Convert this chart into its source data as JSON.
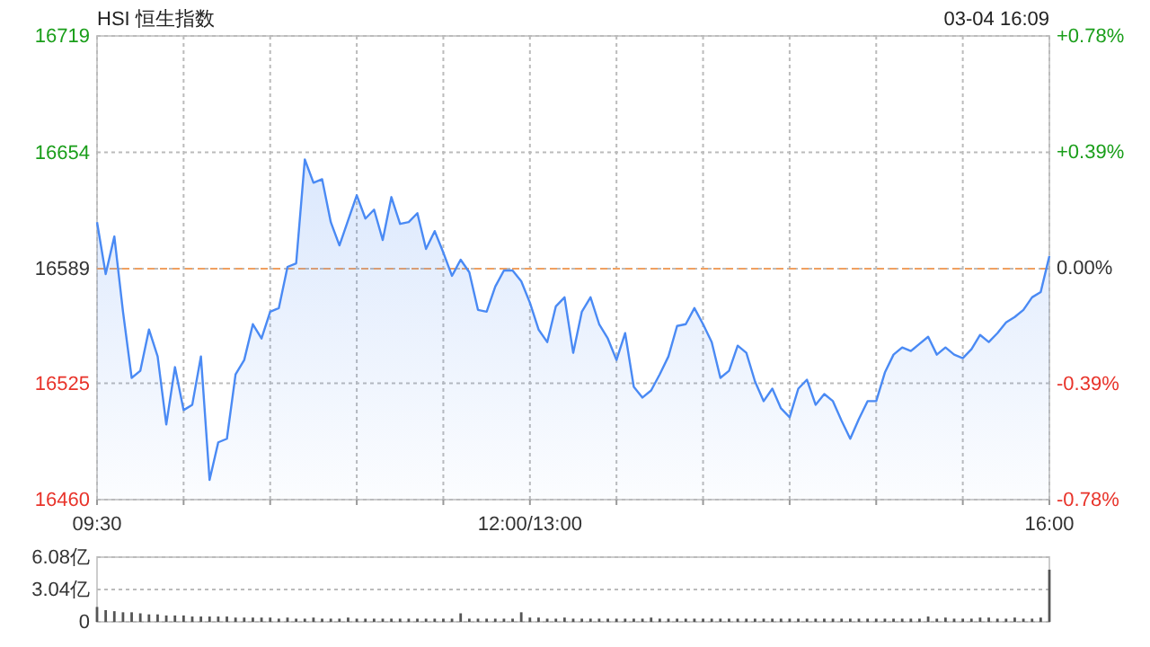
{
  "chart_data": [
    {
      "type": "area",
      "title": "HSI 恒生指数",
      "annotations": [
        "03-04 16:09"
      ],
      "categories": [
        "09:30",
        null,
        null,
        null,
        null,
        null,
        null,
        null,
        null,
        null,
        null,
        null,
        null,
        null,
        null,
        null,
        null,
        null,
        null,
        null,
        null,
        null,
        null,
        null,
        null,
        null,
        null,
        null,
        null,
        null,
        null,
        null,
        null,
        null,
        null,
        null,
        null,
        null,
        null,
        null,
        null,
        null,
        null,
        null,
        null,
        null,
        null,
        null,
        null,
        null,
        "12:00/13:00",
        null,
        null,
        null,
        null,
        null,
        null,
        null,
        null,
        null,
        null,
        null,
        null,
        null,
        null,
        null,
        null,
        null,
        null,
        null,
        null,
        null,
        null,
        null,
        null,
        null,
        null,
        null,
        null,
        null,
        null,
        null,
        null,
        null,
        null,
        null,
        null,
        null,
        null,
        null,
        null,
        null,
        null,
        null,
        null,
        null,
        null,
        null,
        null,
        null,
        null,
        null,
        null,
        null,
        null,
        null,
        null,
        null,
        null,
        null,
        "16:00"
      ],
      "series": [
        {
          "color": "#4a8af4",
          "values": [
            16615,
            16586,
            16607,
            16565,
            16528,
            16532,
            16555,
            16540,
            16502,
            16534,
            16510,
            16513,
            16540,
            16471,
            16492,
            16494,
            16530,
            16538,
            16558,
            16550,
            16565,
            16567,
            16590,
            16592,
            16650,
            16637,
            16639,
            16615,
            16602,
            16616,
            16630,
            16617,
            16622,
            16605,
            16629,
            16614,
            16615,
            16620,
            16600,
            16610,
            16598,
            16585,
            16594,
            16587,
            16566,
            16565,
            16579,
            16588,
            16588,
            16582,
            16570,
            16555,
            16548,
            16568,
            16573,
            16542,
            16565,
            16573,
            16558,
            16550,
            16538,
            16553,
            16523,
            16517,
            16521,
            16530,
            16540,
            16557,
            16558,
            16567,
            16558,
            16548,
            16528,
            16532,
            16546,
            16542,
            16526,
            16515,
            16522,
            16511,
            16506,
            16522,
            16527,
            16513,
            16519,
            16515,
            16504,
            16494,
            16505,
            16515,
            16515,
            16531,
            16541,
            16545,
            16543,
            16547,
            16551,
            16541,
            16545,
            16541,
            16539,
            16544,
            16552,
            16548,
            16553,
            16559,
            16562,
            16566,
            16573,
            16576,
            16596
          ]
        }
      ],
      "ylim": [
        16460,
        16719
      ],
      "yticks": [
        16460,
        16525,
        16589,
        16654,
        16719
      ],
      "y2lim": [
        -0.78,
        0.78
      ],
      "y2ticks": [
        {
          "value": -0.78,
          "label": "-0.78%"
        },
        {
          "value": -0.39,
          "label": "-0.39%"
        },
        {
          "value": 0,
          "label": "0.00%"
        },
        {
          "value": 0.39,
          "label": "+0.39%"
        },
        {
          "value": 0.78,
          "label": "+0.78%"
        }
      ],
      "ref_lines": [
        {
          "axis": "y",
          "value": 16589,
          "color": "#f0a060",
          "line_style": "dashed"
        }
      ],
      "grid": true
    },
    {
      "type": "bar",
      "categories": [
        null,
        null,
        null,
        null,
        null,
        null,
        null,
        null,
        null,
        null,
        null,
        null,
        null,
        null,
        null,
        null,
        null,
        null,
        null,
        null,
        null,
        null,
        null,
        null,
        null,
        null,
        null,
        null,
        null,
        null,
        null,
        null,
        null,
        null,
        null,
        null,
        null,
        null,
        null,
        null,
        null,
        null,
        null,
        null,
        null,
        null,
        null,
        null,
        null,
        null,
        null,
        null,
        null,
        null,
        null,
        null,
        null,
        null,
        null,
        null,
        null,
        null,
        null,
        null,
        null,
        null,
        null,
        null,
        null,
        null,
        null,
        null,
        null,
        null,
        null,
        null,
        null,
        null,
        null,
        null,
        null,
        null,
        null,
        null,
        null,
        null,
        null,
        null,
        null,
        null,
        null,
        null,
        null,
        null,
        null,
        null,
        null,
        null,
        null,
        null,
        null,
        null,
        null,
        null,
        null,
        null,
        null,
        null,
        null,
        null,
        null
      ],
      "series": [
        {
          "color": "#555555",
          "values": [
            1.4,
            1.1,
            1.0,
            0.9,
            0.9,
            0.8,
            0.7,
            0.7,
            0.6,
            0.6,
            0.6,
            0.5,
            0.5,
            0.5,
            0.5,
            0.5,
            0.4,
            0.4,
            0.4,
            0.4,
            0.4,
            0.3,
            0.4,
            0.3,
            0.3,
            0.4,
            0.3,
            0.3,
            0.3,
            0.4,
            0.3,
            0.3,
            0.3,
            0.3,
            0.3,
            0.3,
            0.3,
            0.3,
            0.3,
            0.3,
            0.3,
            0.3,
            0.8,
            0.3,
            0.3,
            0.3,
            0.3,
            0.3,
            0.3,
            0.9,
            0.4,
            0.4,
            0.3,
            0.3,
            0.4,
            0.3,
            0.3,
            0.3,
            0.3,
            0.3,
            0.3,
            0.3,
            0.3,
            0.3,
            0.4,
            0.3,
            0.3,
            0.3,
            0.3,
            0.3,
            0.3,
            0.3,
            0.3,
            0.3,
            0.3,
            0.3,
            0.3,
            0.3,
            0.3,
            0.3,
            0.3,
            0.3,
            0.3,
            0.3,
            0.3,
            0.3,
            0.3,
            0.3,
            0.3,
            0.3,
            0.3,
            0.3,
            0.3,
            0.3,
            0.3,
            0.3,
            0.5,
            0.3,
            0.4,
            0.3,
            0.3,
            0.3,
            0.4,
            0.4,
            0.3,
            0.3,
            0.4,
            0.3,
            0.3,
            0.4,
            4.9
          ]
        }
      ],
      "ylim": [
        0,
        6.08
      ],
      "yticks": [
        0,
        {
          "value": 3.04,
          "label": "3.04亿"
        },
        {
          "value": 6.08,
          "label": "6.08亿"
        }
      ],
      "tick_labels": "y",
      "grid": "y"
    }
  ]
}
